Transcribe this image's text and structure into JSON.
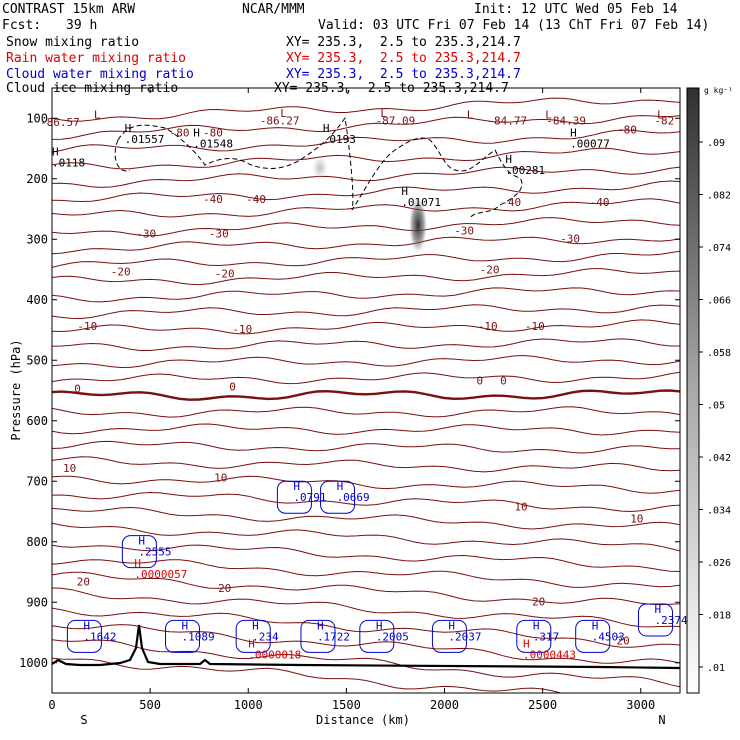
{
  "header": {
    "model": "CONTRAST 15km ARW",
    "org": "NCAR/MMM",
    "init": "Init: 12 UTC Wed 05 Feb 14",
    "fcst_label": "Fcst:",
    "fcst_value": "39 h",
    "valid": "Valid: 03 UTC Fri 07 Feb 14 (13 ChT Fri 07 Feb 14)"
  },
  "fields": [
    {
      "label": "Snow mixing ratio",
      "xy": "XY= 235.3,  2.5 to 235.3,214.7",
      "color": "#000000"
    },
    {
      "label": "Rain water mixing ratio",
      "xy": "XY= 235.3,  2.5 to 235.3,214.7",
      "color": "#dd0000"
    },
    {
      "label": "Cloud water mixing ratio",
      "xy": "XY= 235.3,  2.5 to 235.3,214.7",
      "color": "#0000cc"
    },
    {
      "label": "Cloud ice mixing ratio",
      "xy": "XY= 235.3,  2.5 to 235.3,214.7",
      "color": "#000000"
    }
  ],
  "chart_data": {
    "type": "cross-section contour",
    "xlabel": "Distance (km)",
    "ylabel": "Pressure (hPa)",
    "xlim": [
      0,
      3200
    ],
    "ylim": [
      50,
      1050
    ],
    "x_ticks": [
      0,
      500,
      1000,
      1500,
      2000,
      2500,
      3000
    ],
    "y_ticks": [
      100,
      200,
      300,
      400,
      500,
      600,
      700,
      800,
      900,
      1000
    ],
    "left_end": "S",
    "right_end": "N",
    "colorbar": {
      "unit": "g kg⁻¹",
      "ticks": [
        ".01",
        ".018",
        ".026",
        ".034",
        ".042",
        ".05",
        ".058",
        ".066",
        ".074",
        ".082",
        ".09"
      ]
    },
    "temperature_labels": [
      {
        "x": 40,
        "p": 113,
        "text": "-86.57"
      },
      {
        "x": 1160,
        "p": 110,
        "text": "-86.27"
      },
      {
        "x": 1750,
        "p": 110,
        "text": "-87.09"
      },
      {
        "x": 2320,
        "p": 110,
        "text": "-84.77"
      },
      {
        "x": 2620,
        "p": 110,
        "text": "-84.39"
      },
      {
        "x": 3120,
        "p": 110,
        "text": "-82"
      },
      {
        "x": 650,
        "p": 130,
        "text": "-80"
      },
      {
        "x": 820,
        "p": 130,
        "text": "-80"
      },
      {
        "x": 2930,
        "p": 125,
        "text": "-80"
      },
      {
        "x": 820,
        "p": 240,
        "text": "-40"
      },
      {
        "x": 1040,
        "p": 240,
        "text": "-40"
      },
      {
        "x": 2340,
        "p": 245,
        "text": "-40"
      },
      {
        "x": 2790,
        "p": 245,
        "text": "-40"
      },
      {
        "x": 480,
        "p": 297,
        "text": "-30"
      },
      {
        "x": 850,
        "p": 297,
        "text": "-30"
      },
      {
        "x": 2100,
        "p": 292,
        "text": "-30"
      },
      {
        "x": 2640,
        "p": 305,
        "text": "-30"
      },
      {
        "x": 350,
        "p": 360,
        "text": "-20"
      },
      {
        "x": 880,
        "p": 363,
        "text": "-20"
      },
      {
        "x": 2230,
        "p": 357,
        "text": "-20"
      },
      {
        "x": 180,
        "p": 450,
        "text": "-10"
      },
      {
        "x": 970,
        "p": 455,
        "text": "-10"
      },
      {
        "x": 2220,
        "p": 450,
        "text": "-10"
      },
      {
        "x": 2460,
        "p": 450,
        "text": "-10"
      },
      {
        "x": 130,
        "p": 553,
        "text": "0"
      },
      {
        "x": 920,
        "p": 550,
        "text": "0"
      },
      {
        "x": 2180,
        "p": 540,
        "text": "0"
      },
      {
        "x": 2300,
        "p": 540,
        "text": "0"
      },
      {
        "x": 90,
        "p": 685,
        "text": "10"
      },
      {
        "x": 860,
        "p": 700,
        "text": "10"
      },
      {
        "x": 2390,
        "p": 748,
        "text": "10"
      },
      {
        "x": 2980,
        "p": 768,
        "text": "10"
      },
      {
        "x": 160,
        "p": 872,
        "text": "20"
      },
      {
        "x": 880,
        "p": 883,
        "text": "20"
      },
      {
        "x": 2480,
        "p": 905,
        "text": "20"
      },
      {
        "x": 2910,
        "p": 970,
        "text": "20"
      }
    ],
    "highs_lows": [
      {
        "x": 230,
        "p": 100,
        "text": "L",
        "color": "#7a1010"
      },
      {
        "x": 1180,
        "p": 98,
        "text": "L",
        "color": "#7a1010"
      },
      {
        "x": 1690,
        "p": 98,
        "text": "L",
        "color": "#7a1010"
      },
      {
        "x": 2130,
        "p": 100,
        "text": "L",
        "color": "#7a1010"
      },
      {
        "x": 2530,
        "p": 100,
        "text": "L",
        "color": "#7a1010"
      },
      {
        "x": 3100,
        "p": 100,
        "text": "L",
        "color": "#7a1010"
      }
    ],
    "ice_maxima": [
      {
        "x": 370,
        "p": 141,
        "value": ".01557"
      },
      {
        "x": 720,
        "p": 148,
        "value": ".01548"
      },
      {
        "x": 1380,
        "p": 141,
        "value": ".0193"
      },
      {
        "x": 0,
        "p": 180,
        "value": ".0118"
      },
      {
        "x": 1780,
        "p": 245,
        "value": ".01071"
      },
      {
        "x": 2310,
        "p": 192,
        "value": ".00281"
      },
      {
        "x": 2640,
        "p": 148,
        "value": ".00077"
      }
    ],
    "cloud_water_maxima": [
      {
        "x": 440,
        "p": 823,
        "value": ".2555"
      },
      {
        "x": 1230,
        "p": 733,
        "value": ".0791"
      },
      {
        "x": 1450,
        "p": 733,
        "value": ".0669"
      },
      {
        "x": 160,
        "p": 963,
        "value": ".1642"
      },
      {
        "x": 660,
        "p": 963,
        "value": ".1089"
      },
      {
        "x": 1020,
        "p": 963,
        "value": ".234"
      },
      {
        "x": 1350,
        "p": 963,
        "value": ".1722"
      },
      {
        "x": 1650,
        "p": 963,
        "value": ".2005"
      },
      {
        "x": 2020,
        "p": 963,
        "value": ".2037"
      },
      {
        "x": 2450,
        "p": 963,
        "value": ".317"
      },
      {
        "x": 2750,
        "p": 963,
        "value": ".4503"
      },
      {
        "x": 3070,
        "p": 936,
        "value": ".2374"
      }
    ],
    "rain_maxima": [
      {
        "x": 420,
        "p": 860,
        "value": ".0000057"
      },
      {
        "x": 1000,
        "p": 993,
        "value": ".0000018"
      },
      {
        "x": 2400,
        "p": 993,
        "value": ".0000443"
      }
    ]
  }
}
